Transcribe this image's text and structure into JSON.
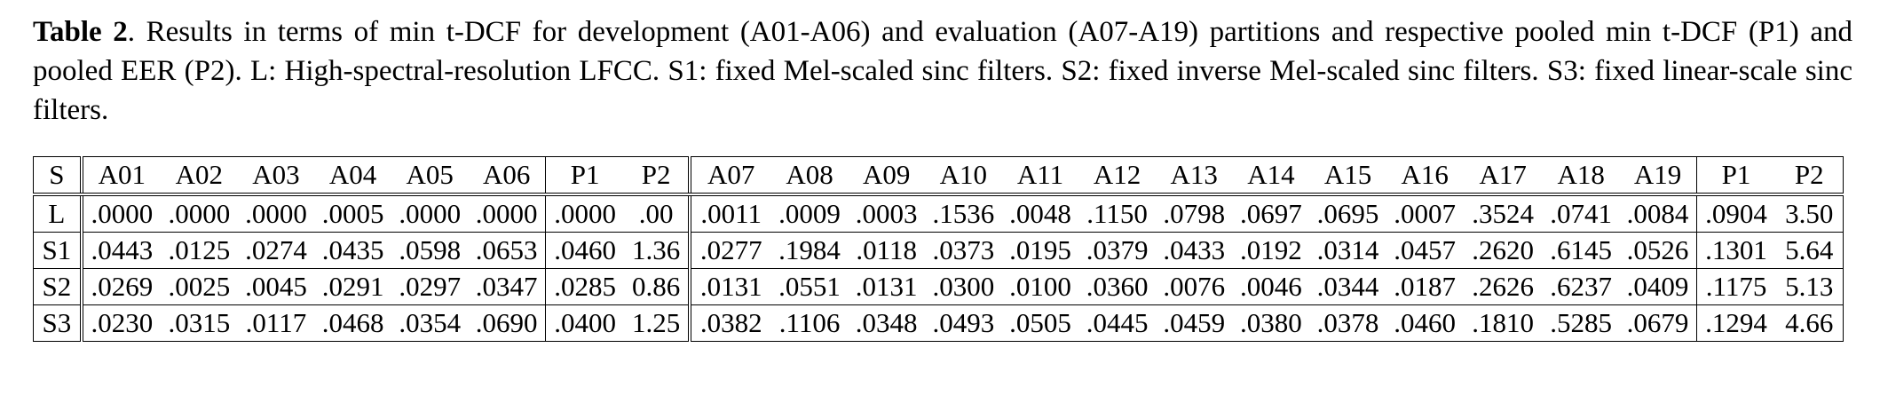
{
  "caption": {
    "label": "Table 2",
    "text": ". Results in terms of min t-DCF for development (A01-A06) and evaluation (A07-A19) partitions and respective pooled min t-DCF (P1) and pooled EER (P2). L: High-spectral-resolution LFCC. S1: fixed Mel-scaled sinc filters. S2: fixed inverse Mel-scaled sinc filters. S3: fixed linear-scale sinc filters."
  },
  "table": {
    "header": [
      "S",
      "A01",
      "A02",
      "A03",
      "A04",
      "A05",
      "A06",
      "P1",
      "P2",
      "A07",
      "A08",
      "A09",
      "A10",
      "A11",
      "A12",
      "A13",
      "A14",
      "A15",
      "A16",
      "A17",
      "A18",
      "A19",
      "P1",
      "P2"
    ],
    "rows": [
      [
        ".0000",
        ".0000",
        ".0000",
        ".0005",
        ".0000",
        ".0000",
        ".0000",
        ".00",
        ".0011",
        ".0009",
        ".0003",
        ".1536",
        ".0048",
        ".1150",
        ".0798",
        ".0697",
        ".0695",
        ".0007",
        ".3524",
        ".0741",
        ".0084",
        ".0904",
        "3.50"
      ],
      [
        ".0443",
        ".0125",
        ".0274",
        ".0435",
        ".0598",
        ".0653",
        ".0460",
        "1.36",
        ".0277",
        ".1984",
        ".0118",
        ".0373",
        ".0195",
        ".0379",
        ".0433",
        ".0192",
        ".0314",
        ".0457",
        ".2620",
        ".6145",
        ".0526",
        ".1301",
        "5.64"
      ],
      [
        ".0269",
        ".0025",
        ".0045",
        ".0291",
        ".0297",
        ".0347",
        ".0285",
        "0.86",
        ".0131",
        ".0551",
        ".0131",
        ".0300",
        ".0100",
        ".0360",
        ".0076",
        ".0046",
        ".0344",
        ".0187",
        ".2626",
        ".6237",
        ".0409",
        ".1175",
        "5.13"
      ],
      [
        ".0230",
        ".0315",
        ".0117",
        ".0468",
        ".0354",
        ".0690",
        ".0400",
        "1.25",
        ".0382",
        ".1106",
        ".0348",
        ".0493",
        ".0505",
        ".0445",
        ".0459",
        ".0380",
        ".0378",
        ".0460",
        ".1810",
        ".5285",
        ".0679",
        ".1294",
        "4.66"
      ]
    ],
    "row_labels": [
      "L",
      "S1",
      "S2",
      "S3"
    ]
  }
}
